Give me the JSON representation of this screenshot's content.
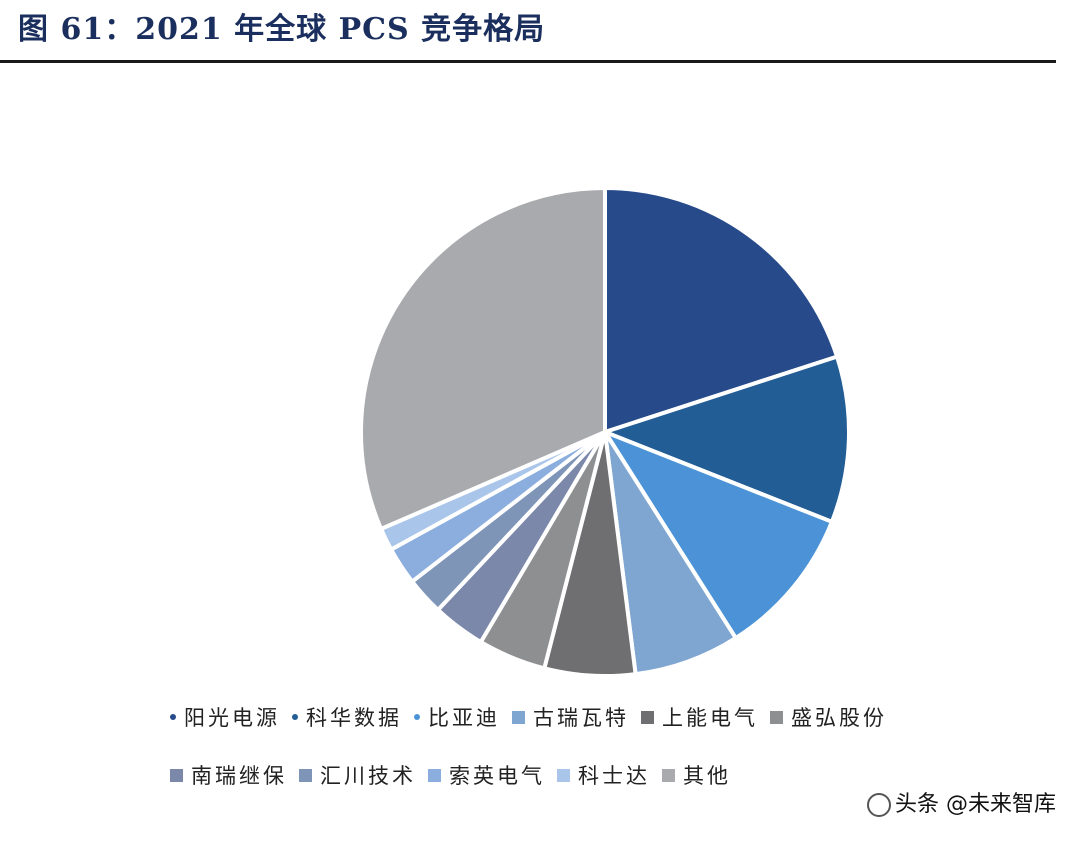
{
  "figure": {
    "title": "图 61：2021 年全球 PCS 竞争格局"
  },
  "watermark": {
    "text": "头条 @未来智库"
  },
  "chart_data": {
    "type": "pie",
    "title": "",
    "start_angle_deg": 0,
    "direction": "clockwise",
    "slices": [
      {
        "name": "阳光电源",
        "value": 20.0,
        "color": "#264a8a",
        "marker": "dot"
      },
      {
        "name": "科华数据",
        "value": 11.0,
        "color": "#225d96",
        "marker": "dot"
      },
      {
        "name": "比亚迪",
        "value": 10.0,
        "color": "#4b93d6",
        "marker": "dot"
      },
      {
        "name": "古瑞瓦特",
        "value": 7.0,
        "color": "#7fa6d0",
        "marker": "square"
      },
      {
        "name": "上能电气",
        "value": 6.0,
        "color": "#6f6f71",
        "marker": "square"
      },
      {
        "name": "盛弘股份",
        "value": 4.5,
        "color": "#8e8f91",
        "marker": "square"
      },
      {
        "name": "南瑞继保",
        "value": 3.5,
        "color": "#7b88aa",
        "marker": "square"
      },
      {
        "name": "汇川技术",
        "value": 2.5,
        "color": "#7e95b8",
        "marker": "square"
      },
      {
        "name": "索英电气",
        "value": 2.5,
        "color": "#8caede",
        "marker": "square"
      },
      {
        "name": "科士达",
        "value": 1.5,
        "color": "#a9c6ea",
        "marker": "square"
      },
      {
        "name": "其他",
        "value": 31.5,
        "color": "#a9aaad",
        "marker": "square"
      }
    ],
    "legend": {
      "position": "bottom"
    }
  }
}
